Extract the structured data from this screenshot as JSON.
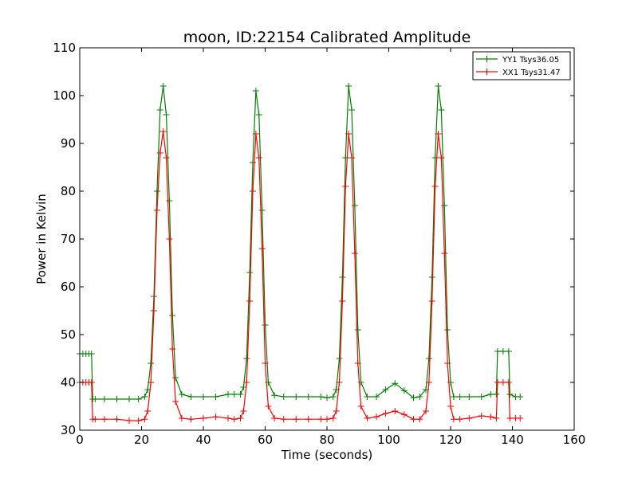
{
  "chart_data": {
    "type": "line",
    "title": "moon, ID:22154 Calibrated Amplitude",
    "xlabel": "Time (seconds)",
    "ylabel": "Power in Kelvin",
    "xlim": [
      0,
      160
    ],
    "ylim": [
      30,
      110
    ],
    "xticks": [
      "0",
      "20",
      "40",
      "60",
      "80",
      "100",
      "120",
      "140",
      "160"
    ],
    "yticks": [
      "30",
      "40",
      "50",
      "60",
      "70",
      "80",
      "90",
      "100",
      "110"
    ],
    "grid": false,
    "legend_position": "upper right",
    "marker": "+",
    "series": [
      {
        "name": "YY1 Tsys36.05",
        "color": "#008000",
        "x": [
          0,
          1,
          2,
          3,
          3.8,
          4.2,
          5,
          8,
          12,
          16,
          19,
          21,
          22,
          23,
          24,
          25,
          26,
          27,
          28,
          29,
          30,
          31,
          33,
          36,
          40,
          44,
          48,
          50,
          52,
          53,
          54,
          55,
          56,
          57,
          58,
          59,
          60,
          61,
          63,
          66,
          70,
          74,
          78,
          80,
          82,
          83,
          84,
          85,
          86,
          87,
          88,
          89,
          90,
          91,
          93,
          96,
          99,
          102,
          105,
          108,
          110,
          112,
          113,
          114,
          115,
          116,
          117,
          118,
          119,
          120,
          121,
          123,
          126,
          130,
          133,
          134.8,
          135.2,
          137,
          138.8,
          139.2,
          141,
          142.5
        ],
        "y": [
          46,
          46,
          46,
          46,
          46,
          36.5,
          36.5,
          36.5,
          36.5,
          36.5,
          36.5,
          37,
          38.5,
          44,
          58,
          80,
          97,
          102,
          96,
          78,
          54,
          41,
          37.5,
          37,
          37,
          37,
          37.5,
          37.5,
          37.5,
          39,
          45,
          63,
          86,
          101,
          96,
          76,
          52,
          40,
          37.3,
          37,
          37,
          37,
          37,
          36.8,
          37,
          38.5,
          45,
          62,
          87,
          102,
          97,
          77,
          51,
          40,
          37,
          37,
          38.5,
          39.8,
          38.3,
          36.8,
          37,
          38.5,
          45,
          62,
          87,
          102,
          97,
          77,
          51,
          40,
          37,
          37,
          37,
          37,
          37.5,
          37.5,
          46.5,
          46.5,
          46.5,
          37.5,
          37,
          37
        ]
      },
      {
        "name": "XX1 Tsys31.47",
        "color": "#ff0000",
        "x": [
          0,
          1,
          2,
          3,
          3.8,
          4.2,
          5,
          8,
          12,
          16,
          19,
          21,
          22,
          23,
          24,
          25,
          26,
          27,
          28,
          29,
          30,
          31,
          33,
          36,
          40,
          44,
          48,
          50,
          52,
          53,
          54,
          55,
          56,
          57,
          58,
          59,
          60,
          61,
          63,
          66,
          70,
          74,
          78,
          80,
          82,
          83,
          84,
          85,
          86,
          87,
          88,
          89,
          90,
          91,
          93,
          96,
          99,
          102,
          105,
          108,
          110,
          112,
          113,
          114,
          115,
          116,
          117,
          118,
          119,
          120,
          121,
          123,
          126,
          130,
          133,
          134.8,
          135.2,
          137,
          138.8,
          139.2,
          141,
          142.5
        ],
        "y": [
          40,
          40,
          40,
          40,
          40,
          32.3,
          32.3,
          32.3,
          32.3,
          32,
          32,
          32.3,
          34,
          40,
          55,
          76,
          88,
          92.5,
          87,
          70,
          47,
          36,
          32.5,
          32.3,
          32.5,
          32.8,
          32.5,
          32.3,
          32.5,
          34,
          40,
          57,
          80,
          92,
          87,
          68,
          44,
          35,
          32.5,
          32.3,
          32.3,
          32.3,
          32.3,
          32.3,
          32.5,
          34,
          40,
          57,
          81,
          92,
          87,
          67,
          44,
          35,
          32.5,
          32.8,
          33.5,
          34,
          33.3,
          32.3,
          32.3,
          34,
          40,
          57,
          81,
          92,
          87,
          67,
          44,
          35,
          32.3,
          32.3,
          32.5,
          33,
          32.8,
          32.5,
          40,
          40,
          40,
          32.5,
          32.5,
          32.5
        ]
      }
    ]
  }
}
